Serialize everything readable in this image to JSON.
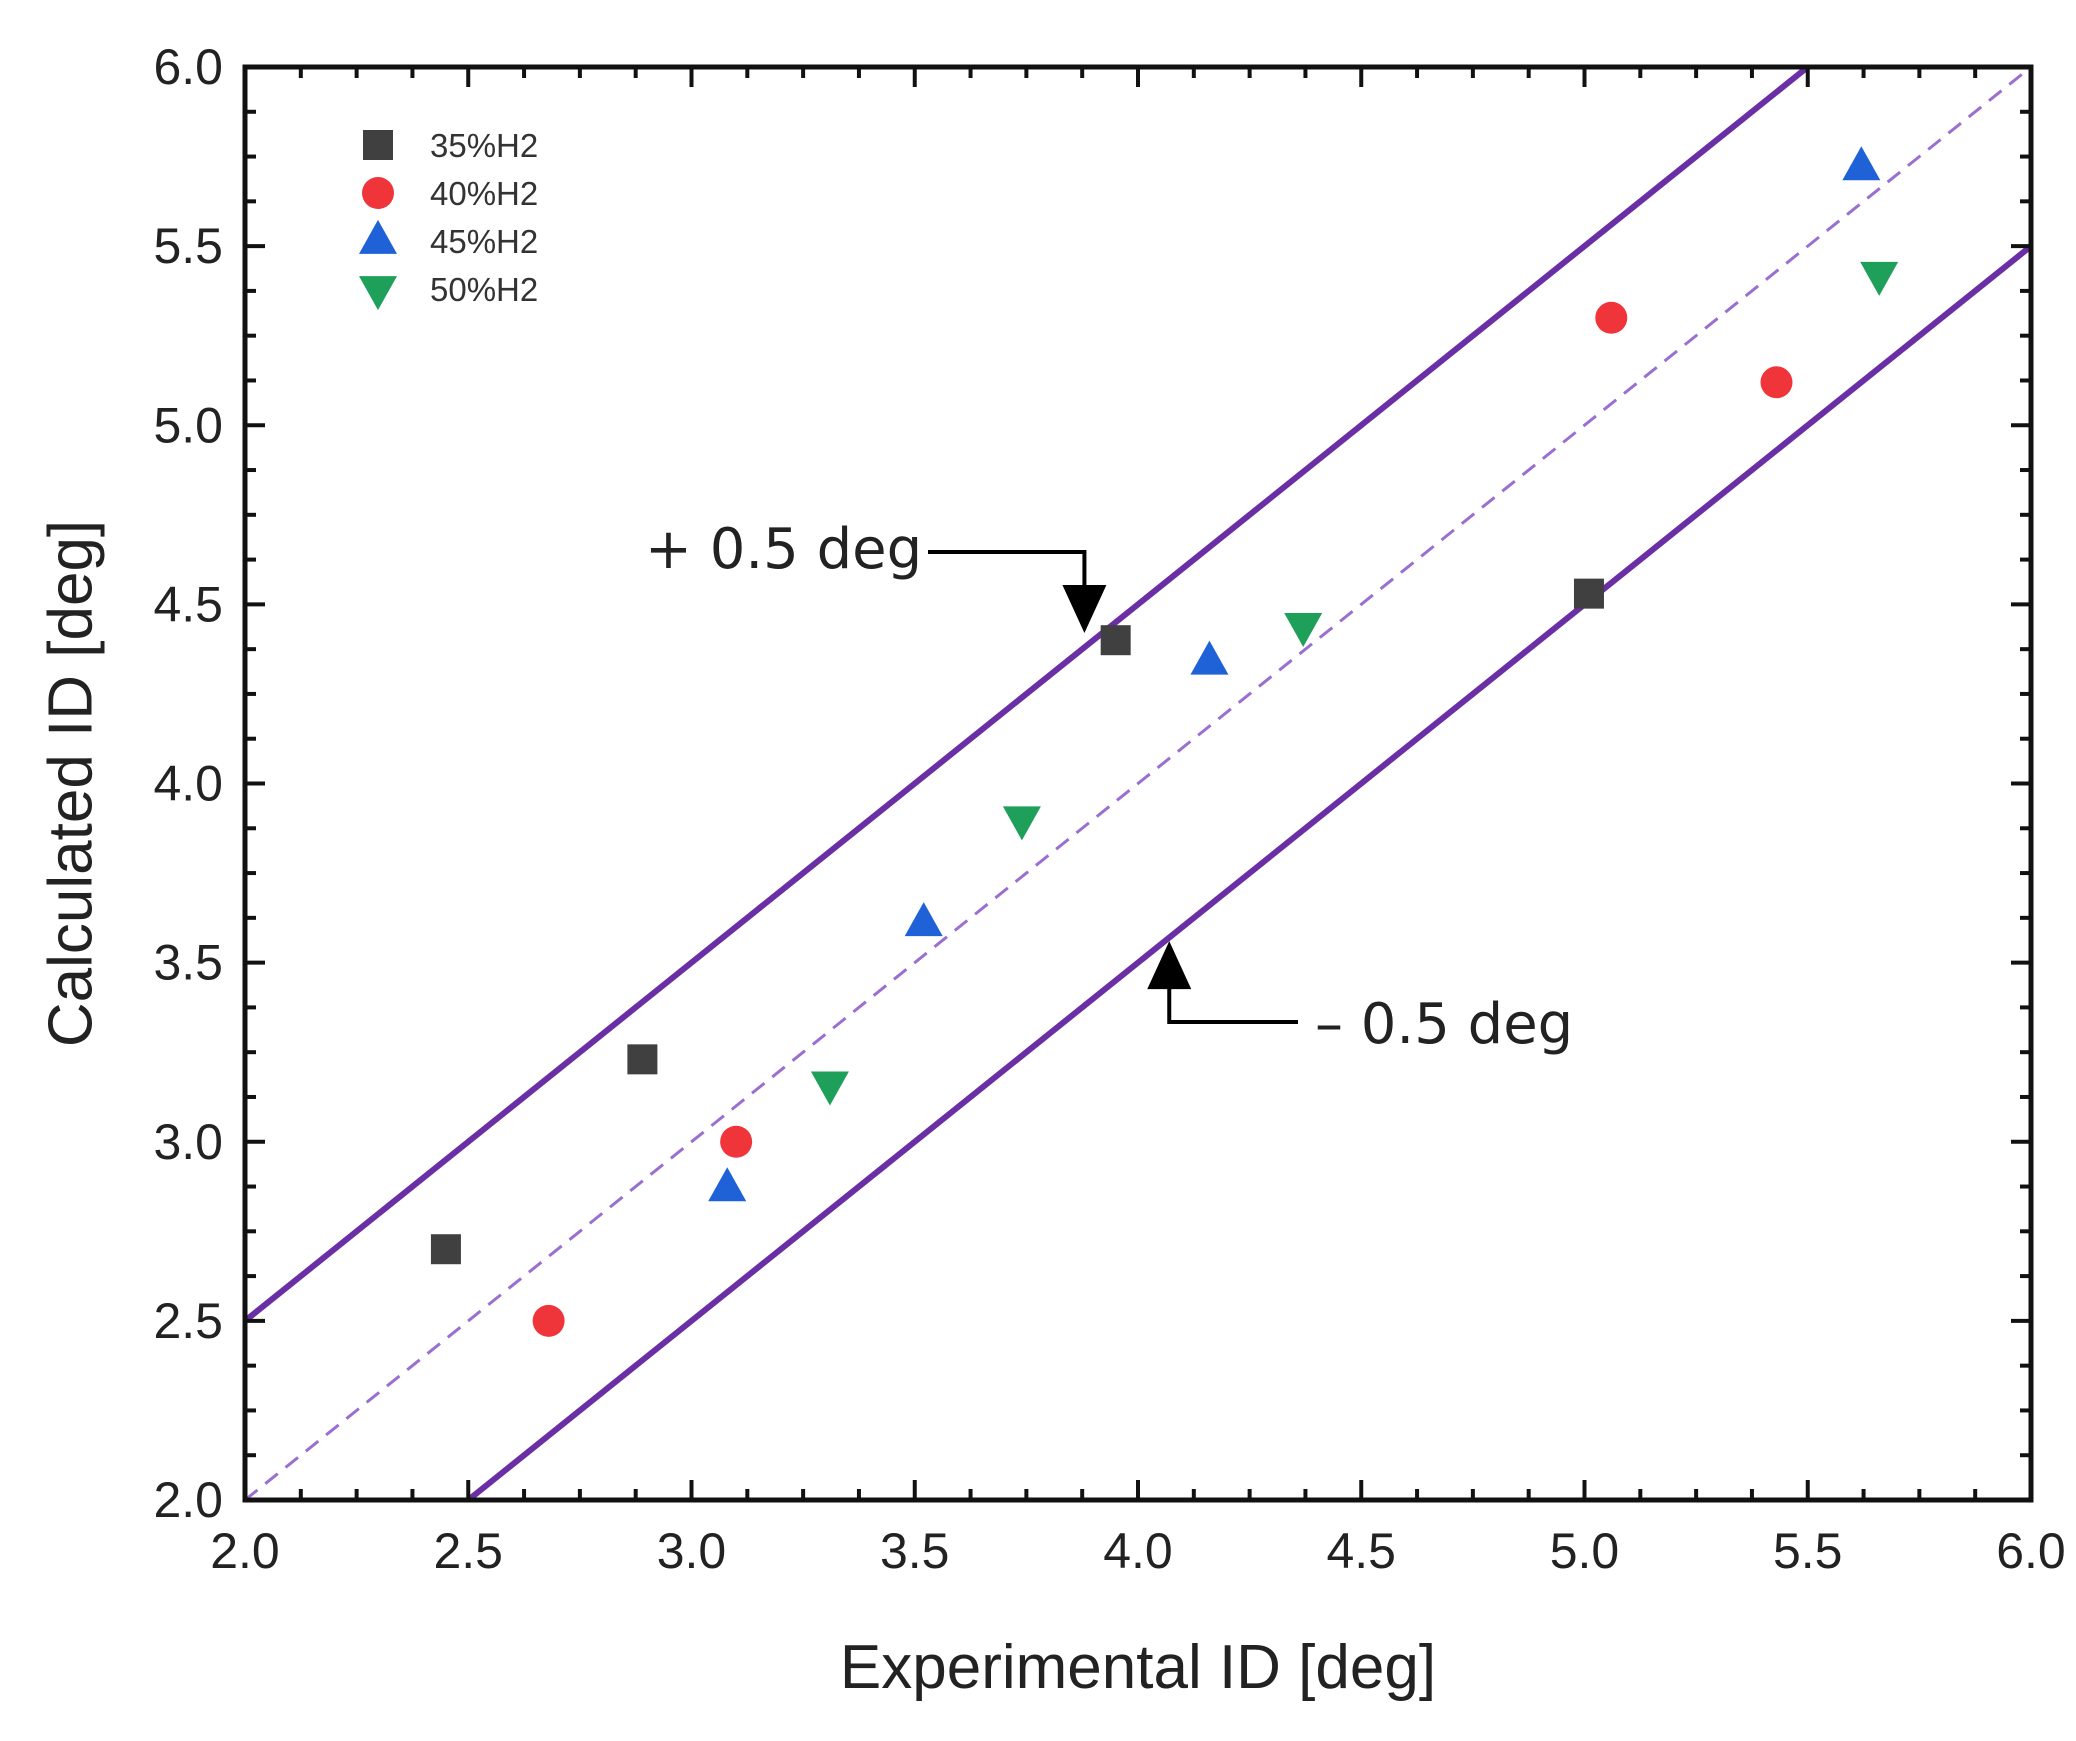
{
  "chart_data": {
    "type": "scatter",
    "title": "",
    "xlabel": "Experimental ID [deg]",
    "ylabel": "Calculated ID [deg]",
    "xlim": [
      2.0,
      6.0
    ],
    "ylim": [
      2.0,
      6.0
    ],
    "xticks": [
      "2.0",
      "2.5",
      "3.0",
      "3.5",
      "4.0",
      "4.5",
      "5.0",
      "5.5",
      "6.0"
    ],
    "yticks": [
      "2.0",
      "2.5",
      "3.0",
      "3.5",
      "4.0",
      "4.5",
      "5.0",
      "5.5",
      "6.0"
    ],
    "grid": false,
    "legend_position": "top-left",
    "series": [
      {
        "name": "35%H2",
        "marker": "square",
        "color": "#404040",
        "points": [
          [
            2.45,
            2.7
          ],
          [
            2.89,
            3.23
          ],
          [
            3.95,
            4.4
          ],
          [
            5.01,
            4.53
          ]
        ]
      },
      {
        "name": "40%H2",
        "marker": "circle",
        "color": "#f0353a",
        "points": [
          [
            2.68,
            2.5
          ],
          [
            3.1,
            3.0
          ],
          [
            5.06,
            5.3
          ],
          [
            5.43,
            5.12
          ]
        ]
      },
      {
        "name": "45%H2",
        "marker": "triangle-up",
        "color": "#1f62d8",
        "points": [
          [
            3.08,
            2.87
          ],
          [
            3.52,
            3.61
          ],
          [
            4.16,
            4.34
          ],
          [
            5.62,
            5.72
          ]
        ]
      },
      {
        "name": "50%H2",
        "marker": "triangle-down",
        "color": "#1fa05a",
        "points": [
          [
            3.31,
            3.16
          ],
          [
            3.74,
            3.9
          ],
          [
            4.37,
            4.44
          ],
          [
            5.66,
            5.42
          ]
        ]
      }
    ],
    "reference_lines": [
      {
        "name": "parity",
        "slope": 1,
        "offset": 0.0,
        "style": "dashed",
        "color": "#9a6fd0"
      },
      {
        "name": "upper-bound",
        "slope": 1,
        "offset": 0.5,
        "style": "solid",
        "color": "#6a2fa5"
      },
      {
        "name": "lower-bound",
        "slope": 1,
        "offset": -0.5,
        "style": "solid",
        "color": "#6a2fa5"
      }
    ],
    "annotations": [
      {
        "text": "+ 0.5 deg",
        "target": "upper-bound",
        "arrow_tip": [
          3.88,
          4.42
        ]
      },
      {
        "text": "– 0.5 deg",
        "target": "lower-bound",
        "arrow_tip": [
          4.07,
          3.56
        ]
      }
    ]
  }
}
